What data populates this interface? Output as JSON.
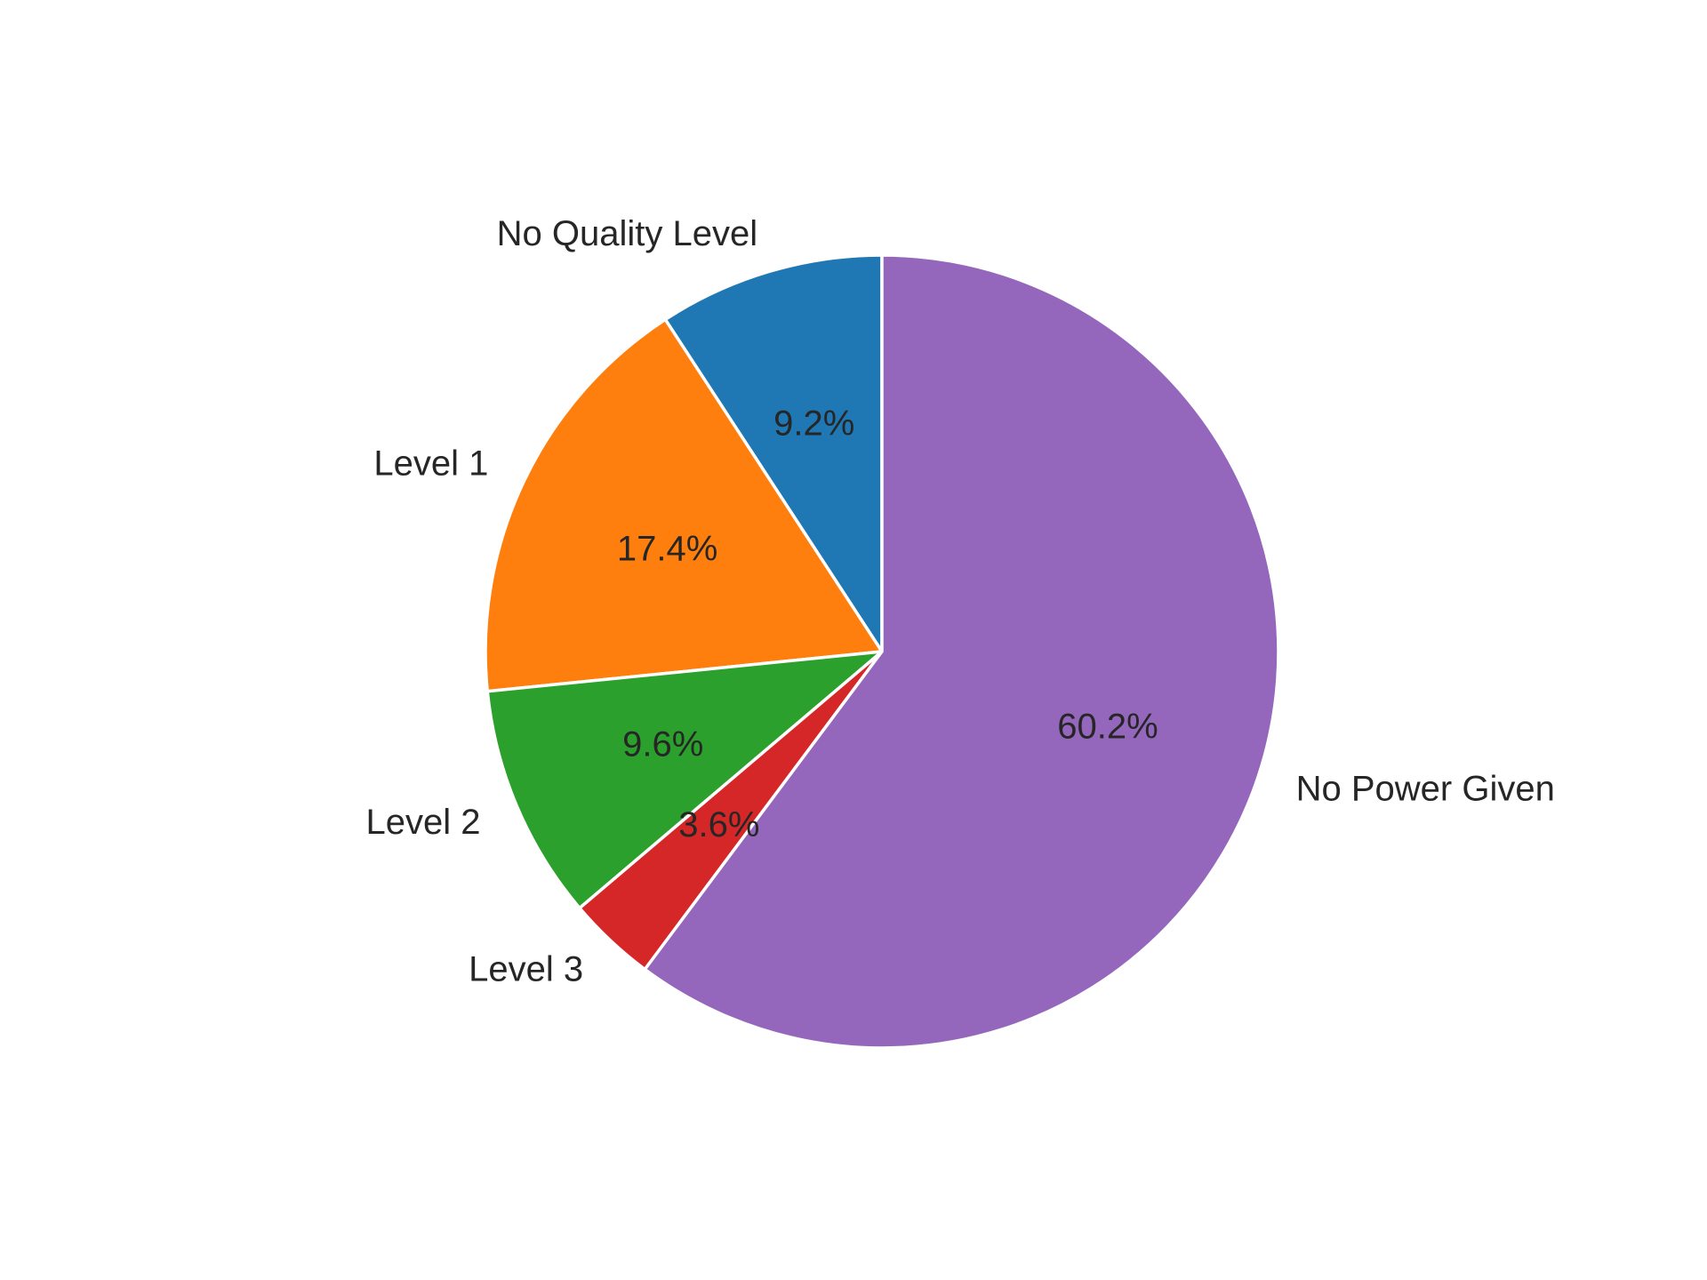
{
  "chart_data": {
    "type": "pie",
    "title": "",
    "categories": [
      "No Quality Level",
      "Level 1",
      "Level 2",
      "Level 3",
      "No Power Given"
    ],
    "values": [
      9.2,
      17.4,
      9.6,
      3.6,
      60.2
    ],
    "value_labels": [
      "9.2%",
      "17.4%",
      "9.6%",
      "3.6%",
      "60.2%"
    ],
    "colors": [
      "#1f77b4",
      "#ff7f0e",
      "#2ca02c",
      "#d62728",
      "#9467bd"
    ],
    "start_angle_deg": 90,
    "direction": "counterclockwise",
    "legend": "none"
  }
}
